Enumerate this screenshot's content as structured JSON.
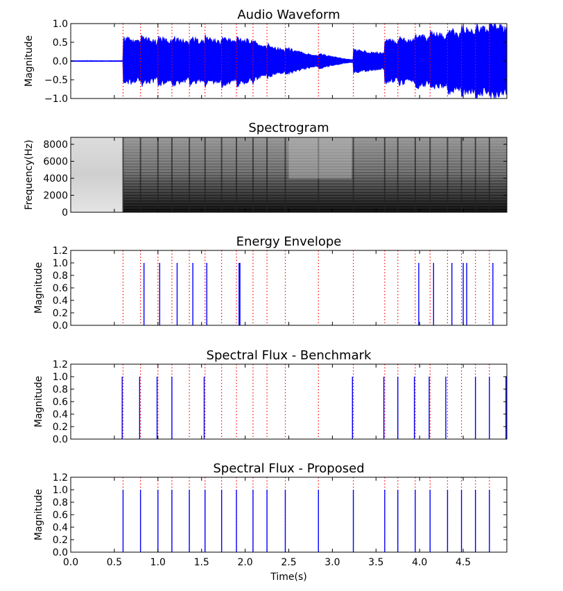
{
  "chart_data": [
    {
      "type": "line",
      "title": "Audio Waveform",
      "ylabel": "Magnitude",
      "xlabel": "",
      "xlim": [
        0,
        5
      ],
      "ylim": [
        -1,
        1
      ],
      "yticks": [
        "1.0",
        "0.5",
        "0.0",
        "−0.5",
        "−1.0"
      ],
      "onset_markers": [
        0.6,
        0.8,
        1.0,
        1.16,
        1.36,
        1.54,
        1.73,
        1.9,
        2.09,
        2.25,
        2.46,
        2.84,
        3.24,
        3.6,
        3.75,
        3.95,
        4.12,
        4.32,
        4.48,
        4.64,
        4.8
      ],
      "series": [
        {
          "values": []
        }
      ],
      "colors": {
        "signal": "#0000ff",
        "marker": "#ff0000"
      }
    },
    {
      "type": "heatmap",
      "title": "Spectrogram",
      "ylabel": "Frequency(Hz)",
      "xlabel": "",
      "xlim": [
        0,
        5
      ],
      "ylim": [
        0,
        8820
      ],
      "yticks": [
        "8000",
        "6000",
        "4000",
        "2000",
        "0"
      ]
    },
    {
      "type": "bar",
      "title": "Energy Envelope",
      "ylabel": "Magnitude",
      "xlabel": "",
      "xlim": [
        0,
        5
      ],
      "ylim": [
        0,
        1.2
      ],
      "yticks": [
        "1.2",
        "1.0",
        "0.8",
        "0.6",
        "0.4",
        "0.2",
        "0.0"
      ],
      "onset_markers": [
        0.6,
        0.8,
        1.0,
        1.16,
        1.36,
        1.54,
        1.73,
        1.9,
        2.09,
        2.25,
        2.46,
        2.84,
        3.24,
        3.6,
        3.75,
        3.95,
        4.12,
        4.32,
        4.48,
        4.64,
        4.8
      ],
      "x": [
        0.84,
        1.02,
        1.22,
        1.4,
        1.56,
        1.93,
        1.94,
        3.99,
        4.16,
        4.37,
        4.5,
        4.54,
        4.84
      ],
      "values": [
        1,
        1,
        1,
        1,
        1,
        1,
        1,
        1,
        1,
        1,
        1,
        1,
        1
      ]
    },
    {
      "type": "bar",
      "title": "Spectral Flux - Benchmark",
      "ylabel": "Magnitude",
      "xlabel": "",
      "xlim": [
        0,
        5
      ],
      "ylim": [
        0,
        1.2
      ],
      "yticks": [
        "1.2",
        "1.0",
        "0.8",
        "0.6",
        "0.4",
        "0.2",
        "0.0"
      ],
      "onset_markers": [
        0.6,
        0.8,
        1.0,
        1.16,
        1.36,
        1.54,
        1.73,
        1.9,
        2.09,
        2.25,
        2.46,
        2.84,
        3.24,
        3.6,
        3.75,
        3.95,
        4.12,
        4.32,
        4.48,
        4.64,
        4.8
      ],
      "x": [
        0.59,
        0.79,
        0.99,
        1.16,
        1.53,
        3.23,
        3.59,
        3.75,
        3.94,
        4.11,
        4.3,
        4.64,
        4.8,
        4.99
      ],
      "values": [
        1,
        1,
        1,
        1,
        1,
        1,
        1,
        1,
        1,
        1,
        1,
        1,
        1,
        1
      ]
    },
    {
      "type": "bar",
      "title": "Spectral Flux - Proposed",
      "ylabel": "Magnitude",
      "xlabel": "Time(s)",
      "xlim": [
        0,
        5
      ],
      "ylim": [
        0,
        1.2
      ],
      "yticks": [
        "1.2",
        "1.0",
        "0.8",
        "0.6",
        "0.4",
        "0.2",
        "0.0"
      ],
      "xticks": [
        "0.0",
        "0.5",
        "1.0",
        "1.5",
        "2.0",
        "2.5",
        "3.0",
        "3.5",
        "4.0",
        "4.5"
      ],
      "onset_markers": [
        0.6,
        0.8,
        1.0,
        1.16,
        1.36,
        1.54,
        1.73,
        1.9,
        2.09,
        2.25,
        2.46,
        2.84,
        3.24,
        3.6,
        3.75,
        3.95,
        4.12,
        4.32,
        4.48,
        4.64,
        4.8
      ],
      "x": [
        0.6,
        0.8,
        1.0,
        1.16,
        1.36,
        1.54,
        1.73,
        1.9,
        2.09,
        2.25,
        2.46,
        2.84,
        3.24,
        3.6,
        3.75,
        3.95,
        4.12,
        4.32,
        4.48,
        4.64,
        4.8
      ],
      "values": [
        1,
        1,
        1,
        1,
        1,
        1,
        1,
        1,
        1,
        1,
        1,
        1,
        1,
        1,
        1,
        1,
        1,
        1,
        1,
        1,
        1
      ]
    }
  ]
}
